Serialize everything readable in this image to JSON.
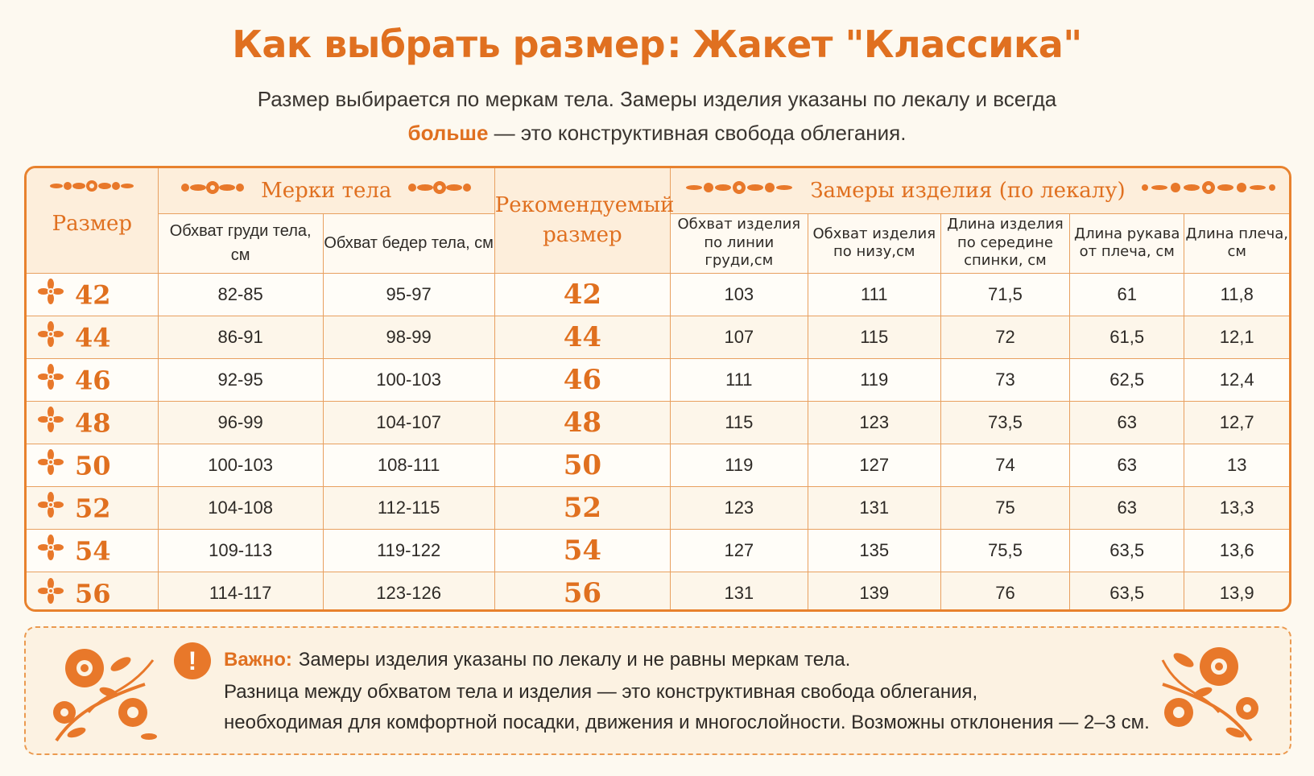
{
  "title": {
    "main": "Как выбрать размер",
    "sep": ":",
    "product": "Жакет \"Классика\""
  },
  "intro": {
    "line1": "Размер выбирается по меркам тела. Замеры изделия указаны по лекалу и всегда",
    "line2_bold": "больше",
    "line2_rest": " — это конструктивная свобода облегания."
  },
  "table": {
    "col_size": "Размер",
    "group_body": "Мерки тела",
    "col_recommended": "Рекомендуемый размер",
    "group_garment": "Замеры изделия (по лекалу)",
    "sub_headers": {
      "chest_body": "Обхват груди тела, см",
      "hips_body": "Обхват бедер тела, см",
      "chest_garment": "Обхват изделия по линии груди,см",
      "hem_garment": "Обхват изделия по низу,см",
      "back_length": "Длина изделия по середине спинки, см",
      "sleeve_length": "Длина рукава от плеча, см",
      "shoulder_length": "Длина плеча, см"
    },
    "rows": [
      {
        "size": "42",
        "chest": "82-85",
        "hips": "95-97",
        "rec": "42",
        "g_chest": "103",
        "g_hem": "111",
        "back": "71,5",
        "sleeve": "61",
        "shoulder": "11,8"
      },
      {
        "size": "44",
        "chest": "86-91",
        "hips": "98-99",
        "rec": "44",
        "g_chest": "107",
        "g_hem": "115",
        "back": "72",
        "sleeve": "61,5",
        "shoulder": "12,1"
      },
      {
        "size": "46",
        "chest": "92-95",
        "hips": "100-103",
        "rec": "46",
        "g_chest": "111",
        "g_hem": "119",
        "back": "73",
        "sleeve": "62,5",
        "shoulder": "12,4"
      },
      {
        "size": "48",
        "chest": "96-99",
        "hips": "104-107",
        "rec": "48",
        "g_chest": "115",
        "g_hem": "123",
        "back": "73,5",
        "sleeve": "63",
        "shoulder": "12,7"
      },
      {
        "size": "50",
        "chest": "100-103",
        "hips": "108-111",
        "rec": "50",
        "g_chest": "119",
        "g_hem": "127",
        "back": "74",
        "sleeve": "63",
        "shoulder": "13"
      },
      {
        "size": "52",
        "chest": "104-108",
        "hips": "112-115",
        "rec": "52",
        "g_chest": "123",
        "g_hem": "131",
        "back": "75",
        "sleeve": "63",
        "shoulder": "13,3"
      },
      {
        "size": "54",
        "chest": "109-113",
        "hips": "119-122",
        "rec": "54",
        "g_chest": "127",
        "g_hem": "135",
        "back": "75,5",
        "sleeve": "63,5",
        "shoulder": "13,6"
      },
      {
        "size": "56",
        "chest": "114-117",
        "hips": "123-126",
        "rec": "56",
        "g_chest": "131",
        "g_hem": "139",
        "back": "76",
        "sleeve": "63,5",
        "shoulder": "13,9"
      }
    ]
  },
  "note": {
    "icon": "exclamation-icon",
    "label": "Важно:",
    "line1": "Замеры изделия указаны по лекалу и не равны меркам тела.",
    "line2": "Разница между обхватом тела и изделия — это конструктивная свобода облегания,",
    "line3": "необходимая для комфортной посадки, движения и многослойности. Возможны отклонения — 2–3 см."
  },
  "colors": {
    "accent": "#e07020",
    "border": "#e8822e",
    "background": "#fdf9f0"
  }
}
